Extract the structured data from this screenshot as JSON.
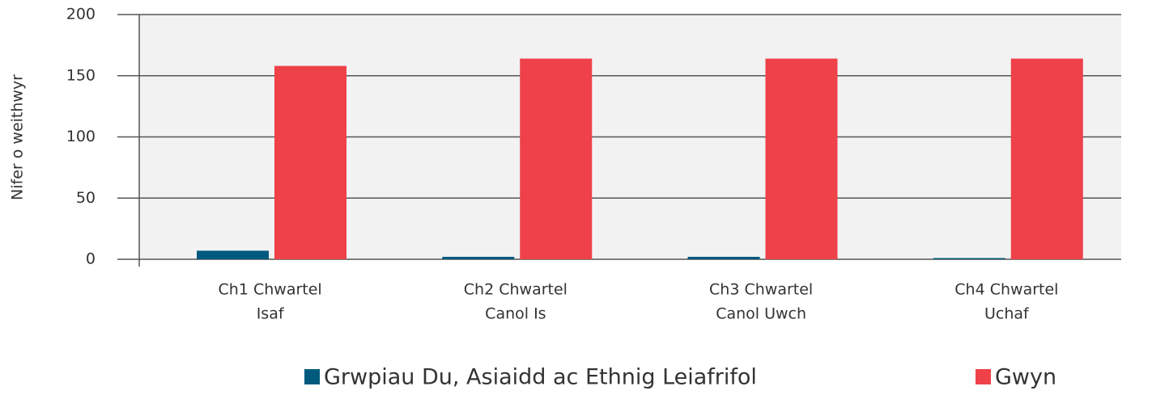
{
  "chart_data": {
    "type": "bar",
    "y_label": "Nifer o weithwyr",
    "categories": [
      [
        "Ch1 Chwartel",
        "Isaf"
      ],
      [
        "Ch2 Chwartel",
        "Canol Is"
      ],
      [
        "Ch3 Chwartel",
        "Canol Uwch"
      ],
      [
        "Ch4 Chwartel",
        "Uchaf"
      ]
    ],
    "series": [
      {
        "name": "Grwpiau Du, Asiaidd ac Ethnig Leiafrifol",
        "color": "#005a7e",
        "values": [
          7,
          2,
          2,
          1
        ]
      },
      {
        "name": "Gwyn",
        "color": "#ef4149",
        "values": [
          158,
          164,
          164,
          164
        ]
      }
    ],
    "ylim": [
      0,
      200
    ],
    "yticks": [
      0,
      50,
      100,
      150,
      200
    ],
    "grid": true
  }
}
